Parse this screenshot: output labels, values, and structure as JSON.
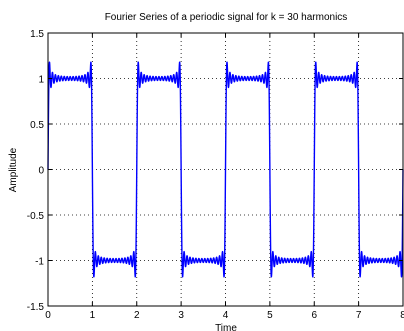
{
  "chart_data": {
    "type": "line",
    "title": "Fourier Series of a periodic signal for k = 30 harmonics",
    "xlabel": "Time",
    "ylabel": "Amplitude",
    "xlim": [
      0,
      8
    ],
    "ylim": [
      -1.5,
      1.5
    ],
    "grid": true,
    "x_ticks": [
      0,
      1,
      2,
      3,
      4,
      5,
      6,
      7,
      8
    ],
    "y_ticks": [
      -1.5,
      -1,
      -0.5,
      0,
      0.5,
      1,
      1.5
    ],
    "x_tick_labels": [
      "0",
      "1",
      "2",
      "3",
      "4",
      "5",
      "6",
      "7",
      "8"
    ],
    "y_tick_labels": [
      "-1.5",
      "-1",
      "-0.5",
      "0",
      "0.5",
      "1",
      "1.5"
    ],
    "series": [
      {
        "signal": "square wave, period 2, +1 on (0,1), -1 on (1,2)",
        "harmonics": 30,
        "color": "#0000ff"
      }
    ]
  }
}
